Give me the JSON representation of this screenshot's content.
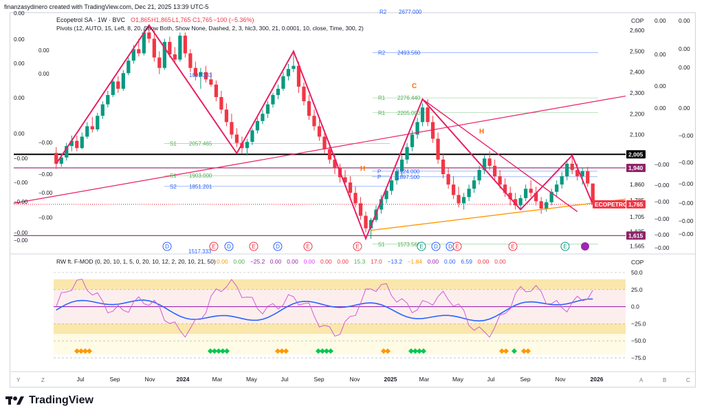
{
  "header_caption": "finanzasydinero created with TradingView.com, Dec 21, 2025 13:39 UTC-5",
  "legend": {
    "symbol": "Ecopetrol SA · 1W · BVC",
    "ohlc_o": "O1,865",
    "ohlc_h": "H1,865",
    "ohlc_l": "L1,765",
    "ohlc_c": "C1,765",
    "ohlc_chg": "−100 (−5.36%)",
    "pivots": "Pivots (12, AUTO, 15, Left, 8, 20, Show Both, Show None, Dashed, 2, 3, hlc3, 300, 21, 0.0001, 10, close, Time, 300, 2)"
  },
  "price_axis": {
    "currency": "COP",
    "ticks": [
      "2,600",
      "2,500",
      "2,400",
      "2,300",
      "2,200",
      "2,100",
      "1,860",
      "1,785",
      "1,705",
      "1,635",
      "1,565"
    ]
  },
  "price_badges": [
    {
      "label": "2,005",
      "color": "#000000"
    },
    {
      "label": "1,940",
      "color": "#8e2469"
    },
    {
      "label": "ECOPETROL",
      "color": "#f23645"
    },
    {
      "label": "1,765",
      "color": "#f23645"
    },
    {
      "label": "1,615",
      "color": "#8e2469"
    }
  ],
  "left_zero_labels": [
    "0.00",
    "0.00",
    "0.00",
    "0.00",
    "0.00",
    "0.00",
    "0.00",
    "−0.00",
    "−0.00",
    "−0.00",
    "−0.00",
    "−0.00",
    "−0.00",
    "−0.00",
    "−0.00",
    "−0.00"
  ],
  "pivot_labels": [
    {
      "name": "R2",
      "value": "2493.560"
    },
    {
      "name": "R1",
      "value": "2276.440"
    },
    {
      "name": "R1",
      "value": "2205.000"
    },
    {
      "name": "S1",
      "value": "2057.465"
    },
    {
      "name": "S1",
      "value": "1903.000"
    },
    {
      "name": "S2",
      "value": "1851.201"
    },
    {
      "name": "P",
      "value": "1924.000"
    },
    {
      "name": "P",
      "value": "1897.500"
    },
    {
      "name": "S1",
      "value": "1573.560"
    }
  ],
  "pivot_partial_labels": [
    "R2",
    "2677.000",
    "1891.333",
    "1517.333"
  ],
  "wave_labels": [
    "C",
    "H",
    "H"
  ],
  "event_markers": [
    "D",
    "E",
    "D",
    "E",
    "D",
    "E",
    "E",
    "E",
    "D",
    "D",
    "E",
    "E",
    "E"
  ],
  "extra_axis_cols": {
    "col1": [
      "0.00",
      "0.00",
      "0.00",
      "0.00",
      "−0.00",
      "−0.00",
      "−0.00",
      "−0.00",
      "−0.00",
      "−0.00"
    ],
    "col2": [
      "0.00",
      "0.00",
      "0.00",
      "0.00",
      "−0.00",
      "−0.00",
      "−0.00",
      "−0.00",
      "−0.00",
      "−0.00"
    ]
  },
  "oscillator": {
    "legend": "RW ft. F-MOD (0, 20, 10, 1, 5, 0, 20, 10, 12, 2, 20, 10, 21, 50)",
    "values": [
      {
        "text": "0.00",
        "color": "#ff9800"
      },
      {
        "text": "0.00",
        "color": "#4caf50"
      },
      {
        "text": "−25.2",
        "color": "#9c27b0"
      },
      {
        "text": "0.00",
        "color": "#9c27b0"
      },
      {
        "text": "0.00",
        "color": "#9c27b0"
      },
      {
        "text": "0.00",
        "color": "#e040fb"
      },
      {
        "text": "0.00",
        "color": "#f23645"
      },
      {
        "text": "0.00",
        "color": "#f23645"
      },
      {
        "text": "15.3",
        "color": "#4caf50"
      },
      {
        "text": "17.0",
        "color": "#f23645"
      },
      {
        "text": "−13.2",
        "color": "#2962ff"
      },
      {
        "text": "−1.84",
        "color": "#ff9800"
      },
      {
        "text": "0.00",
        "color": "#9c27b0"
      },
      {
        "text": "0.00",
        "color": "#2962ff"
      },
      {
        "text": "6.59",
        "color": "#2962ff"
      },
      {
        "text": "0.00",
        "color": "#f23645"
      },
      {
        "text": "0.00",
        "color": "#f23645"
      }
    ],
    "axis_currency": "COP",
    "axis_ticks": [
      "50.0",
      "25.0",
      "0.0",
      "−25.0",
      "−50.0",
      "−75.0"
    ]
  },
  "time_axis": [
    "Jul",
    "Sep",
    "Nov",
    "2024",
    "Mar",
    "May",
    "Jul",
    "Sep",
    "Nov",
    "2025",
    "Mar",
    "May",
    "Jul",
    "Sep",
    "Nov",
    "2026"
  ],
  "bottom_letters": [
    "Y",
    "Z",
    "A",
    "B",
    "C"
  ],
  "brand": "TradingView",
  "chart_data": {
    "type": "candlestick",
    "symbol": "Ecopetrol SA",
    "interval": "1W",
    "exchange": "BVC",
    "currency": "COP",
    "ylim": [
      1540,
      2680
    ],
    "x_start": "2023-06",
    "x_end": "2026-01",
    "price_levels": [
      2005,
      1940,
      1765,
      1615
    ],
    "candles": [
      [
        2012,
        2040,
        1935,
        1960
      ],
      [
        1960,
        2010,
        1945,
        1990
      ],
      [
        1990,
        2060,
        1975,
        2045
      ],
      [
        2045,
        2095,
        2020,
        2070
      ],
      [
        2070,
        2095,
        2020,
        2035
      ],
      [
        2035,
        2110,
        2030,
        2090
      ],
      [
        2090,
        2160,
        2080,
        2140
      ],
      [
        2140,
        2185,
        2110,
        2125
      ],
      [
        2125,
        2205,
        2115,
        2190
      ],
      [
        2190,
        2260,
        2175,
        2245
      ],
      [
        2245,
        2310,
        2230,
        2290
      ],
      [
        2290,
        2370,
        2280,
        2355
      ],
      [
        2355,
        2380,
        2300,
        2320
      ],
      [
        2320,
        2410,
        2310,
        2395
      ],
      [
        2395,
        2470,
        2385,
        2455
      ],
      [
        2455,
        2530,
        2440,
        2510
      ],
      [
        2510,
        2560,
        2475,
        2490
      ],
      [
        2490,
        2610,
        2480,
        2590
      ],
      [
        2590,
        2625,
        2540,
        2560
      ],
      [
        2560,
        2600,
        2450,
        2470
      ],
      [
        2470,
        2500,
        2390,
        2420
      ],
      [
        2420,
        2560,
        2410,
        2545
      ],
      [
        2545,
        2570,
        2470,
        2485
      ],
      [
        2485,
        2520,
        2440,
        2460
      ],
      [
        2460,
        2590,
        2450,
        2575
      ],
      [
        2575,
        2590,
        2470,
        2490
      ],
      [
        2490,
        2510,
        2400,
        2420
      ],
      [
        2420,
        2450,
        2360,
        2380
      ],
      [
        2380,
        2420,
        2320,
        2400
      ],
      [
        2400,
        2430,
        2350,
        2365
      ],
      [
        2365,
        2400,
        2330,
        2340
      ],
      [
        2340,
        2360,
        2260,
        2280
      ],
      [
        2280,
        2310,
        2200,
        2220
      ],
      [
        2220,
        2250,
        2140,
        2160
      ],
      [
        2160,
        2200,
        2080,
        2100
      ],
      [
        2100,
        2130,
        2040,
        2060
      ],
      [
        2060,
        2090,
        2010,
        2035
      ],
      [
        2035,
        2080,
        2000,
        2065
      ],
      [
        2065,
        2130,
        2050,
        2120
      ],
      [
        2120,
        2180,
        2105,
        2165
      ],
      [
        2165,
        2220,
        2150,
        2200
      ],
      [
        2200,
        2260,
        2180,
        2245
      ],
      [
        2245,
        2300,
        2230,
        2290
      ],
      [
        2290,
        2340,
        2270,
        2320
      ],
      [
        2320,
        2400,
        2310,
        2380
      ],
      [
        2380,
        2440,
        2360,
        2415
      ],
      [
        2415,
        2500,
        2400,
        2430
      ],
      [
        2430,
        2450,
        2300,
        2330
      ],
      [
        2330,
        2350,
        2240,
        2260
      ],
      [
        2260,
        2290,
        2170,
        2190
      ],
      [
        2190,
        2220,
        2120,
        2140
      ],
      [
        2140,
        2170,
        2070,
        2090
      ],
      [
        2090,
        2110,
        2010,
        2030
      ],
      [
        2030,
        2060,
        1960,
        1980
      ],
      [
        1980,
        2010,
        1910,
        1940
      ],
      [
        1940,
        1960,
        1870,
        1895
      ],
      [
        1895,
        1930,
        1850,
        1870
      ],
      [
        1870,
        1900,
        1800,
        1820
      ],
      [
        1820,
        1850,
        1750,
        1770
      ],
      [
        1770,
        1800,
        1690,
        1710
      ],
      [
        1710,
        1730,
        1630,
        1650
      ],
      [
        1650,
        1700,
        1600,
        1690
      ],
      [
        1690,
        1760,
        1680,
        1740
      ],
      [
        1740,
        1810,
        1720,
        1790
      ],
      [
        1790,
        1850,
        1770,
        1830
      ],
      [
        1830,
        1900,
        1810,
        1880
      ],
      [
        1880,
        1940,
        1860,
        1925
      ],
      [
        1925,
        2000,
        1900,
        1980
      ],
      [
        1980,
        2060,
        1960,
        2040
      ],
      [
        2040,
        2120,
        2020,
        2100
      ],
      [
        2100,
        2180,
        2080,
        2160
      ],
      [
        2160,
        2250,
        2140,
        2230
      ],
      [
        2230,
        2270,
        2140,
        2160
      ],
      [
        2160,
        2190,
        2060,
        2080
      ],
      [
        2080,
        2110,
        1960,
        1980
      ],
      [
        1980,
        2010,
        1890,
        1910
      ],
      [
        1910,
        1940,
        1840,
        1860
      ],
      [
        1860,
        1900,
        1790,
        1810
      ],
      [
        1810,
        1850,
        1750,
        1770
      ],
      [
        1770,
        1820,
        1740,
        1800
      ],
      [
        1800,
        1860,
        1780,
        1840
      ],
      [
        1840,
        1900,
        1820,
        1880
      ],
      [
        1880,
        1950,
        1860,
        1930
      ],
      [
        1930,
        2000,
        1910,
        1985
      ],
      [
        1985,
        2020,
        1930,
        1950
      ],
      [
        1950,
        1980,
        1880,
        1900
      ],
      [
        1900,
        1930,
        1840,
        1860
      ],
      [
        1860,
        1890,
        1800,
        1820
      ],
      [
        1820,
        1850,
        1760,
        1790
      ],
      [
        1790,
        1820,
        1740,
        1760
      ],
      [
        1760,
        1810,
        1740,
        1795
      ],
      [
        1795,
        1860,
        1780,
        1840
      ],
      [
        1840,
        1880,
        1800,
        1820
      ],
      [
        1820,
        1850,
        1760,
        1780
      ],
      [
        1780,
        1800,
        1720,
        1745
      ],
      [
        1745,
        1790,
        1730,
        1775
      ],
      [
        1775,
        1840,
        1760,
        1825
      ],
      [
        1825,
        1880,
        1800,
        1860
      ],
      [
        1860,
        1920,
        1840,
        1900
      ],
      [
        1900,
        1980,
        1880,
        1960
      ],
      [
        1960,
        2000,
        1910,
        1930
      ],
      [
        1930,
        1960,
        1880,
        1900
      ],
      [
        1900,
        1940,
        1860,
        1925
      ],
      [
        1925,
        1945,
        1850,
        1865
      ],
      [
        1865,
        1865,
        1765,
        1765
      ]
    ],
    "zigzag": [
      [
        0,
        1960
      ],
      [
        18,
        2625
      ],
      [
        35,
        2010
      ],
      [
        46,
        2500
      ],
      [
        60,
        1600
      ],
      [
        71,
        2270
      ],
      [
        90,
        1740
      ],
      [
        100,
        2000
      ],
      [
        104,
        1765
      ]
    ]
  }
}
